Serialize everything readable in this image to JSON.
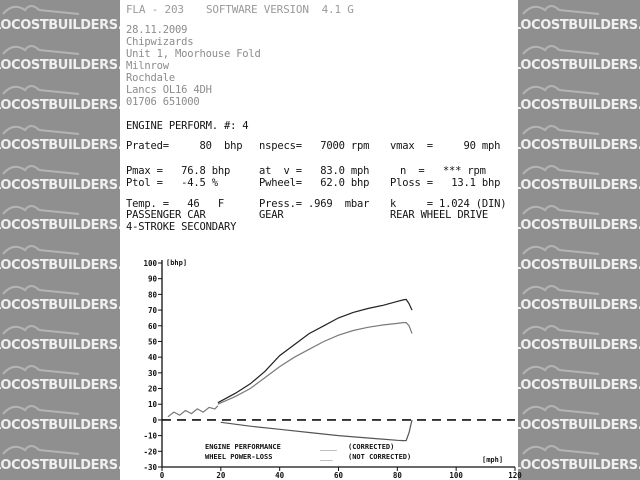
{
  "watermark": {
    "text": "LOCOSTBUILDERS.CO.UK"
  },
  "header": {
    "line1": "FLA - 203",
    "software_version": "SOFTWARE VERSION  4.1 G"
  },
  "customer": {
    "date": "28.11.2009",
    "name": "Chipwizards",
    "address": [
      "Unit 1, Moorhouse Fold",
      "Milnrow",
      "Rochdale",
      "Lancs OL16 4DH",
      "01706 651000"
    ]
  },
  "report": {
    "title": "ENGINE PERFORM. #: 4",
    "rows": [
      [
        "Prated=     80  bhp",
        "nspecs=   7000 rpm",
        "vmax  =     90 mph"
      ],
      [
        "Pmax =   76.8 bhp",
        "at  v =   83.0 mph",
        "n  =   *** rpm"
      ],
      [
        "Ptol =   -4.5 %",
        "Pwheel=   62.0 bhp",
        "Ploss =   13.1 bhp"
      ],
      [
        "Temp. =   46   F",
        "Press.= .969  mbar",
        "k     = 1.024 (DIN)"
      ],
      [
        "PASSENGER CAR",
        "GEAR",
        "REAR WHEEL DRIVE"
      ],
      [
        "4-STROKE SECONDARY",
        "",
        ""
      ]
    ]
  },
  "chart_data": {
    "type": "line",
    "ylabel": "[bhp]",
    "xlabel": "[mph]",
    "xlim": [
      0,
      120
    ],
    "ylim": [
      -30,
      100
    ],
    "x_ticks": [
      "0",
      "20",
      "40",
      "60",
      "80",
      "100",
      "120"
    ],
    "y_ticks": [
      "100",
      "90",
      "80",
      "70",
      "60",
      "50",
      "40",
      "30",
      "20",
      "10",
      "0",
      "-10",
      "-20",
      "-30"
    ],
    "legend": [
      {
        "label": "ENGINE PERFORMANCE",
        "sample": "____",
        "note": "(CORRECTED)"
      },
      {
        "label": "WHEEL POWER-LOSS",
        "sample": "___",
        "note": "(NOT CORRECTED)"
      }
    ],
    "series": [
      {
        "color": "#222222",
        "x": [
          19,
          25,
          30,
          35,
          40,
          45,
          50,
          55,
          60,
          65,
          70,
          75,
          80,
          82,
          83,
          84,
          85
        ],
        "y": [
          11,
          17,
          23,
          31,
          41,
          48,
          55,
          60,
          65,
          68.5,
          71,
          73,
          75.5,
          76.5,
          76.8,
          74,
          70
        ]
      },
      {
        "color": "#7a7a7a",
        "x": [
          19,
          25,
          30,
          35,
          40,
          45,
          50,
          55,
          60,
          65,
          70,
          75,
          80,
          82,
          83,
          84,
          85
        ],
        "y": [
          10,
          15,
          20,
          27,
          34,
          40,
          45,
          50,
          54,
          57,
          59,
          60.5,
          61.5,
          62,
          62,
          60,
          55
        ]
      },
      {
        "color": "#7a7a7a",
        "x": [
          2,
          4,
          6,
          8,
          10,
          12,
          14,
          16,
          18,
          19
        ],
        "y": [
          2,
          5,
          3,
          6,
          4,
          7,
          5,
          8,
          7,
          9
        ]
      },
      {
        "color": "#555555",
        "x": [
          20,
          30,
          40,
          50,
          60,
          70,
          80,
          82,
          83,
          84,
          85
        ],
        "y": [
          -1.5,
          -4,
          -6,
          -8,
          -10,
          -11.5,
          -13,
          -13.2,
          -13.1,
          -8,
          0
        ]
      }
    ],
    "zero_line": {
      "style": "dashed"
    }
  }
}
